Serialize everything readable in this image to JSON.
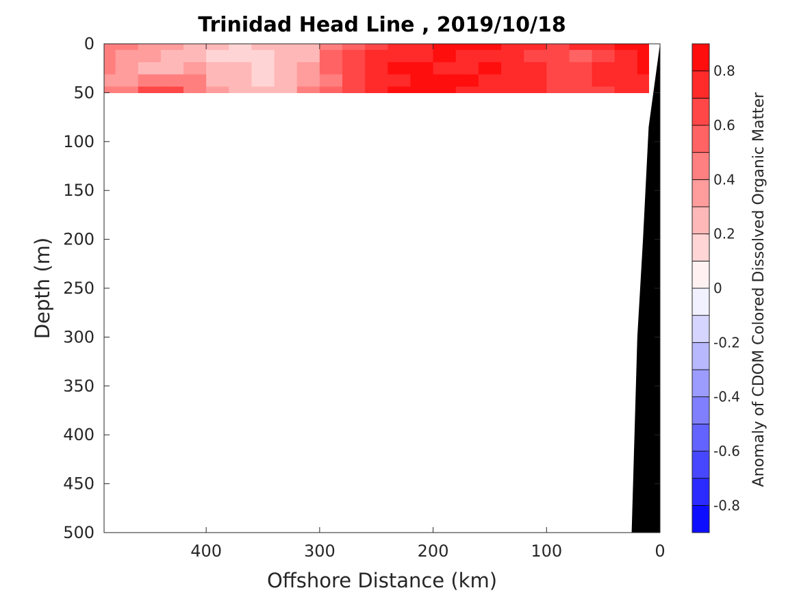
{
  "chart_data": {
    "type": "heatmap",
    "title": "Trinidad Head Line , 2019/10/18",
    "xlabel": "Offshore Distance (km)",
    "ylabel": "Depth (m)",
    "colorbar_label": "Anomaly of CDOM Colored Dissolved Organic Matter",
    "xlim": [
      490,
      0
    ],
    "ylim": [
      500,
      0
    ],
    "x_ticks": [
      400,
      300,
      200,
      100,
      0
    ],
    "y_ticks": [
      0,
      50,
      100,
      150,
      200,
      250,
      300,
      350,
      400,
      450,
      500
    ],
    "clim": [
      -0.9,
      0.9
    ],
    "colorbar_ticks": [
      0.8,
      0.6,
      0.4,
      0.2,
      0,
      -0.2,
      -0.4,
      -0.6,
      -0.8
    ],
    "colorbar_levels": 18,
    "colormap": {
      "low": "#0000ff",
      "mid": "#ffffff",
      "high": "#ff0000"
    },
    "grid": false,
    "data_extent": {
      "x": [
        490,
        10
      ],
      "depth": [
        0,
        50
      ]
    },
    "x": [
      490,
      470,
      450,
      430,
      410,
      390,
      370,
      350,
      330,
      310,
      290,
      270,
      250,
      230,
      210,
      190,
      170,
      150,
      130,
      110,
      90,
      70,
      50,
      30,
      10
    ],
    "depth": [
      0,
      12.5,
      25,
      37.5,
      50
    ],
    "values": [
      [
        0.45,
        0.4,
        0.35,
        0.35,
        0.3,
        0.2,
        0.18,
        0.2,
        0.22,
        0.3,
        0.5,
        0.55,
        0.65,
        0.7,
        0.75,
        0.82,
        0.85,
        0.8,
        0.75,
        0.7,
        0.65,
        0.7,
        0.75,
        0.8,
        0.82
      ],
      [
        0.42,
        0.38,
        0.32,
        0.3,
        0.28,
        0.18,
        0.15,
        0.18,
        0.2,
        0.3,
        0.55,
        0.6,
        0.7,
        0.72,
        0.78,
        0.8,
        0.78,
        0.75,
        0.72,
        0.65,
        0.6,
        0.55,
        0.65,
        0.75,
        0.85
      ],
      [
        0.4,
        0.35,
        0.3,
        0.3,
        0.35,
        0.28,
        0.2,
        0.15,
        0.22,
        0.35,
        0.55,
        0.65,
        0.75,
        0.8,
        0.82,
        0.78,
        0.75,
        0.8,
        0.78,
        0.7,
        0.65,
        0.6,
        0.7,
        0.78,
        0.8
      ],
      [
        0.38,
        0.35,
        0.4,
        0.45,
        0.4,
        0.3,
        0.22,
        0.18,
        0.25,
        0.35,
        0.5,
        0.6,
        0.72,
        0.78,
        0.8,
        0.82,
        0.85,
        0.78,
        0.75,
        0.72,
        0.68,
        0.65,
        0.7,
        0.75,
        0.78
      ],
      [
        0.4,
        0.45,
        0.6,
        0.65,
        0.5,
        0.35,
        0.28,
        0.25,
        0.3,
        0.4,
        0.55,
        0.65,
        0.75,
        0.82,
        0.85,
        0.8,
        0.78,
        0.75,
        0.72,
        0.7,
        0.68,
        0.65,
        0.68,
        0.72,
        0.75
      ]
    ],
    "bathymetry": {
      "x": [
        0,
        10,
        15,
        20,
        25
      ],
      "depth": [
        0,
        85,
        200,
        300,
        500
      ]
    }
  }
}
